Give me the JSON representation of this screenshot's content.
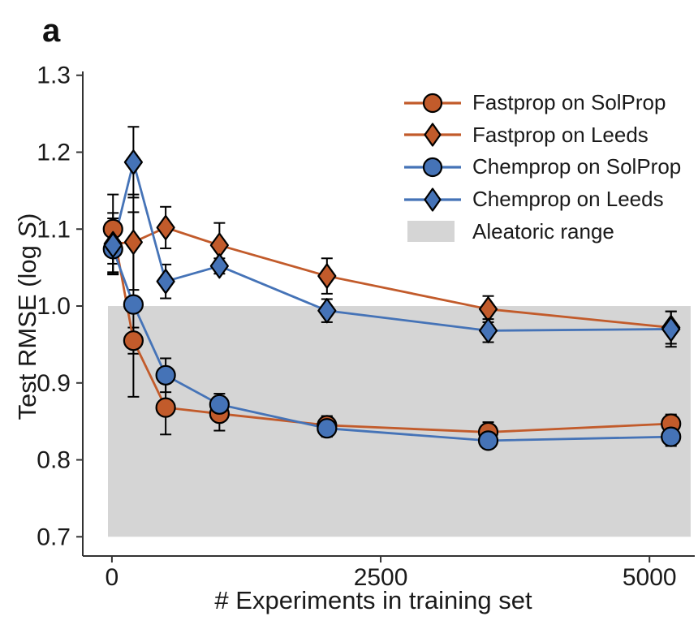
{
  "chart_data": {
    "type": "line",
    "panel_label": "a",
    "xlabel": "# Experiments in training set",
    "ylabel": "Test RMSE (log S)",
    "ylabel_parts": {
      "prefix": "Test RMSE (log ",
      "italic": "S",
      "suffix": ")"
    },
    "x": [
      10,
      200,
      500,
      1000,
      2000,
      3500,
      5200
    ],
    "xticks": [
      0,
      2500,
      5000
    ],
    "yticks": [
      0.7,
      0.8,
      0.9,
      1.0,
      1.1,
      1.2,
      1.3
    ],
    "xlim": [
      -271,
      5421
    ],
    "ylim": [
      0.675,
      1.305
    ],
    "grid": false,
    "legend_position": "upper right, no frame",
    "colors": {
      "fastprop": "#c25b2b",
      "chemprop": "#4573b7",
      "band": "#d5d5d5",
      "error_bar": "#000000",
      "marker_edge": "#000000",
      "axis": "#333333"
    },
    "series": [
      {
        "name": "Fastprop on SolProp",
        "marker": "circle",
        "color": "#c25b2b",
        "values": [
          1.1,
          0.955,
          0.868,
          0.86,
          0.845,
          0.836,
          0.847
        ],
        "errors": [
          0.045,
          0.017,
          0.035,
          0.022,
          0.012,
          0.013,
          0.012
        ]
      },
      {
        "name": "Fastprop on Leeds",
        "marker": "diamond",
        "color": "#c25b2b",
        "values": [
          1.081,
          1.083,
          1.102,
          1.079,
          1.039,
          0.996,
          0.972
        ],
        "errors": [
          0.04,
          0.062,
          0.027,
          0.029,
          0.023,
          0.017,
          0.021
        ]
      },
      {
        "name": "Chemprop on SolProp",
        "marker": "circle",
        "color": "#4573b7",
        "values": [
          1.074,
          1.002,
          0.91,
          0.872,
          0.841,
          0.825,
          0.83
        ],
        "errors": [
          0.032,
          0.12,
          0.022,
          0.014,
          0.011,
          0.01,
          0.012
        ]
      },
      {
        "name": "Chemprop on Leeds",
        "marker": "diamond",
        "color": "#4573b7",
        "values": [
          1.079,
          1.187,
          1.032,
          1.052,
          0.994,
          0.968,
          0.97
        ],
        "errors": [
          0.035,
          0.046,
          0.022,
          0.01,
          0.015,
          0.015,
          0.023
        ]
      }
    ],
    "band": {
      "label": "Aleatoric range",
      "ymin": 0.7,
      "ymax": 1.0,
      "xmin": -37,
      "xmax": 5383,
      "color": "#d5d5d5"
    }
  }
}
